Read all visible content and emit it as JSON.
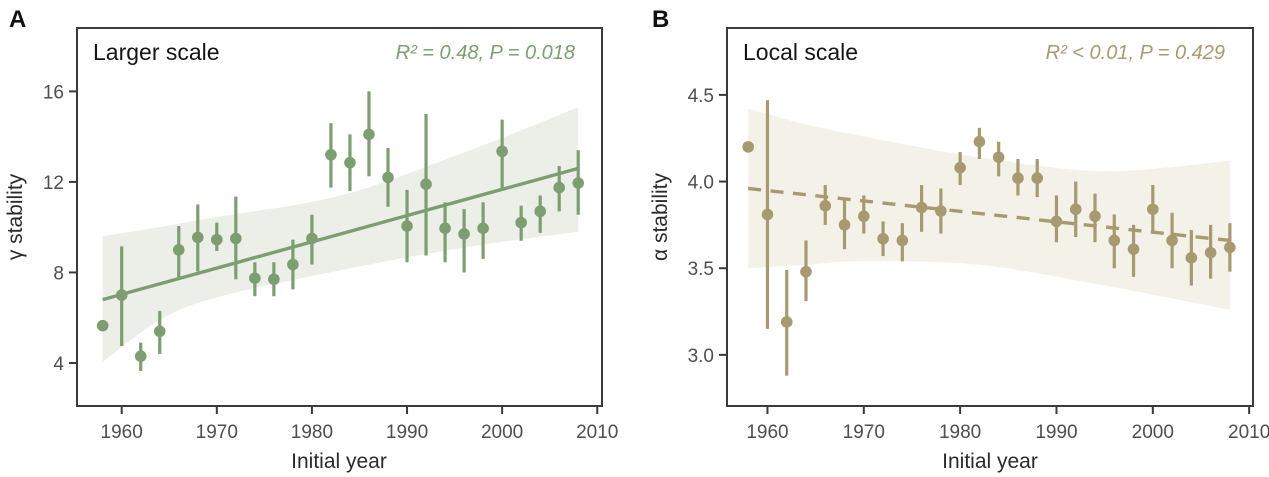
{
  "figure": {
    "background": "#ffffff",
    "axis_color": "#3a3a3a",
    "tick_label_color": "#4e4e4e"
  },
  "chart_data": [
    {
      "type": "scatter",
      "panel_label": "A",
      "title": "Larger scale",
      "annotation": "R² = 0.48, P = 0.018",
      "xlabel": "Initial year",
      "ylabel": "γ stability",
      "grid": false,
      "legend": null,
      "xlim": [
        1955.3,
        2010.5
      ],
      "ylim": [
        2.1,
        18.8
      ],
      "x_ticks": [
        {
          "value": 1960,
          "label": "1960"
        },
        {
          "value": 1970,
          "label": "1970"
        },
        {
          "value": 1980,
          "label": "1980"
        },
        {
          "value": 1990,
          "label": "1990"
        },
        {
          "value": 2000,
          "label": "2000"
        },
        {
          "value": 2010,
          "label": "2010"
        }
      ],
      "y_ticks": [
        {
          "value": 4,
          "label": "4"
        },
        {
          "value": 8,
          "label": "8"
        },
        {
          "value": 12,
          "label": "12"
        },
        {
          "value": 16,
          "label": "16"
        }
      ],
      "colors": {
        "accent": "#7d9e70",
        "band": "#ecefe8"
      },
      "trend_line": {
        "style": "solid",
        "x": [
          1958,
          2008
        ],
        "y": [
          6.8,
          12.6
        ]
      },
      "confidence_band": {
        "x": [
          1958,
          1964,
          1970,
          1983,
          1996,
          2008
        ],
        "upper": [
          9.6,
          10.0,
          10.45,
          11.4,
          13.3,
          15.3
        ],
        "lower": [
          4.05,
          5.9,
          6.9,
          8.1,
          9.1,
          9.8
        ]
      },
      "series": [
        {
          "name": "gamma stability with error bars",
          "x": [
            1958,
            1960,
            1962,
            1964,
            1966,
            1968,
            1970,
            1972,
            1974,
            1976,
            1978,
            1980,
            1982,
            1984,
            1986,
            1988,
            1990,
            1992,
            1994,
            1996,
            1998,
            2000,
            2002,
            2004,
            2006,
            2008
          ],
          "y": [
            5.65,
            7.0,
            4.3,
            5.4,
            9.0,
            9.55,
            9.45,
            9.5,
            7.75,
            7.7,
            8.35,
            9.5,
            13.2,
            12.85,
            14.1,
            12.2,
            10.05,
            11.9,
            9.95,
            9.7,
            9.95,
            13.35,
            10.2,
            10.7,
            11.75,
            11.95
          ],
          "y_lo": [
            null,
            4.75,
            3.65,
            4.4,
            7.7,
            8.05,
            8.95,
            7.7,
            6.95,
            6.95,
            7.25,
            8.35,
            11.75,
            11.6,
            12.25,
            10.9,
            8.45,
            8.75,
            8.45,
            8.0,
            8.6,
            11.65,
            9.4,
            9.75,
            10.7,
            10.55
          ],
          "y_hi": [
            null,
            9.15,
            4.9,
            6.3,
            10.05,
            11.0,
            10.2,
            11.35,
            8.45,
            8.45,
            9.45,
            10.55,
            14.6,
            14.1,
            16.0,
            13.5,
            11.65,
            15.0,
            11.1,
            10.8,
            11.1,
            14.75,
            10.95,
            11.4,
            12.7,
            13.4
          ]
        }
      ]
    },
    {
      "type": "scatter",
      "panel_label": "B",
      "title": "Local scale",
      "annotation": "R² < 0.01, P = 0.429",
      "xlabel": "Initial year",
      "ylabel": "α stability",
      "grid": false,
      "legend": null,
      "xlim": [
        1955.8,
        2010.4
      ],
      "ylim": [
        2.705,
        4.886
      ],
      "x_ticks": [
        {
          "value": 1960,
          "label": "1960"
        },
        {
          "value": 1970,
          "label": "1970"
        },
        {
          "value": 1980,
          "label": "1980"
        },
        {
          "value": 1990,
          "label": "1990"
        },
        {
          "value": 2000,
          "label": "2000"
        },
        {
          "value": 2010,
          "label": "2010"
        }
      ],
      "y_ticks": [
        {
          "value": 3.0,
          "label": "3.0"
        },
        {
          "value": 3.5,
          "label": "3.5"
        },
        {
          "value": 4.0,
          "label": "4.0"
        },
        {
          "value": 4.5,
          "label": "4.5"
        }
      ],
      "colors": {
        "accent": "#a89a70",
        "band": "#f4f1e9"
      },
      "trend_line": {
        "style": "dashed",
        "x": [
          1958,
          2008
        ],
        "y": [
          3.96,
          3.66
        ]
      },
      "confidence_band": {
        "x": [
          1958,
          1964,
          1970,
          1982,
          1995,
          2008
        ],
        "upper": [
          4.42,
          4.33,
          4.26,
          4.14,
          4.06,
          4.12
        ],
        "lower": [
          3.5,
          3.52,
          3.54,
          3.52,
          3.4,
          3.26
        ]
      },
      "series": [
        {
          "name": "alpha stability with error bars",
          "x": [
            1958,
            1960,
            1962,
            1964,
            1966,
            1968,
            1970,
            1972,
            1974,
            1976,
            1978,
            1980,
            1982,
            1984,
            1986,
            1988,
            1990,
            1992,
            1994,
            1996,
            1998,
            2000,
            2002,
            2004,
            2006,
            2008
          ],
          "y": [
            4.2,
            3.81,
            3.19,
            3.48,
            3.86,
            3.75,
            3.8,
            3.67,
            3.66,
            3.85,
            3.83,
            4.08,
            4.23,
            4.14,
            4.02,
            4.02,
            3.77,
            3.84,
            3.8,
            3.66,
            3.61,
            3.84,
            3.66,
            3.56,
            3.59,
            3.62
          ],
          "y_lo": [
            null,
            3.15,
            2.88,
            3.31,
            3.75,
            3.61,
            3.7,
            3.57,
            3.54,
            3.71,
            3.7,
            3.98,
            4.13,
            4.03,
            3.92,
            3.91,
            3.65,
            3.68,
            3.65,
            3.5,
            3.45,
            3.7,
            3.5,
            3.4,
            3.44,
            3.48
          ],
          "y_hi": [
            null,
            4.47,
            3.49,
            3.66,
            3.98,
            3.9,
            3.92,
            3.77,
            3.76,
            3.98,
            3.96,
            4.17,
            4.31,
            4.23,
            4.13,
            4.13,
            3.92,
            4.0,
            3.93,
            3.81,
            3.75,
            3.98,
            3.82,
            3.72,
            3.75,
            3.76
          ]
        }
      ]
    }
  ]
}
